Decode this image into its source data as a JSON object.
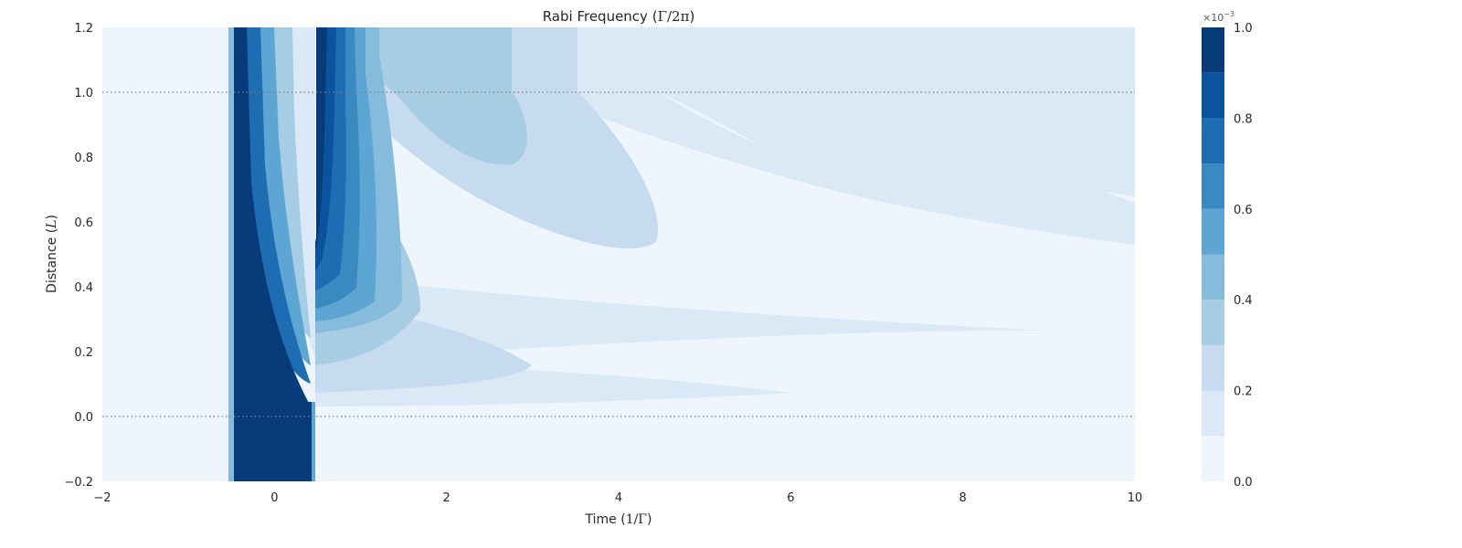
{
  "chart_data": {
    "type": "heatmap",
    "variant": "filled-contour",
    "title_prefix": "Rabi Frequency (",
    "title_math": "Γ/2π",
    "title_suffix": ")",
    "xlabel_prefix": "Time (",
    "xlabel_math": "1/Γ",
    "xlabel_suffix": ")",
    "ylabel_prefix": "Distance (",
    "ylabel_math": "L",
    "ylabel_suffix": ")",
    "xlim": [
      -2,
      10
    ],
    "ylim": [
      -0.2,
      1.2
    ],
    "x_ticks": [
      "−2",
      "0",
      "2",
      "4",
      "6",
      "8",
      "10"
    ],
    "x_tick_values": [
      -2,
      0,
      2,
      4,
      6,
      8,
      10
    ],
    "y_ticks": [
      "−0.2",
      "0.0",
      "0.2",
      "0.4",
      "0.6",
      "0.8",
      "1.0",
      "1.2"
    ],
    "y_tick_values": [
      -0.2,
      0.0,
      0.2,
      0.4,
      0.6,
      0.8,
      1.0,
      1.2
    ],
    "reference_lines_y": [
      0.0,
      1.0
    ],
    "grid": false,
    "colorbar": {
      "levels": [
        0.0,
        0.1,
        0.2,
        0.3,
        0.4,
        0.5,
        0.6,
        0.7,
        0.8,
        0.9,
        1.0
      ],
      "tick_labels": [
        "0.0",
        "0.2",
        "0.4",
        "0.6",
        "0.8",
        "1.0"
      ],
      "tick_values": [
        0.0,
        0.2,
        0.4,
        0.6,
        0.8,
        1.0
      ],
      "exponent_label": "×10",
      "exponent_power": "−3",
      "colors": [
        "#eef5fc",
        "#dbe9f6",
        "#c6dbef",
        "#a6cde4",
        "#85bcdc",
        "#5da5d2",
        "#3a8ac2",
        "#1e6db2",
        "#0b539c",
        "#083b7a"
      ]
    },
    "pulse": {
      "input_pulse_time_range": [
        -0.5,
        0.5
      ],
      "input_pulse_value": 1.0,
      "description_level_max": 1.0
    }
  }
}
